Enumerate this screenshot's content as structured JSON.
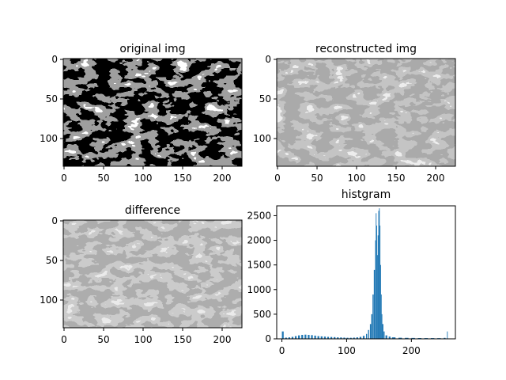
{
  "figure": {
    "panels": [
      {
        "title": "original img",
        "x_ticks": [
          "0",
          "50",
          "100",
          "150",
          "200"
        ],
        "y_ticks": [
          "0",
          "50",
          "100"
        ]
      },
      {
        "title": "reconstructed img",
        "x_ticks": [
          "0",
          "50",
          "100",
          "150",
          "200"
        ],
        "y_ticks": [
          "0",
          "50",
          "100"
        ]
      },
      {
        "title": "difference",
        "x_ticks": [
          "0",
          "50",
          "100",
          "150",
          "200"
        ],
        "y_ticks": [
          "0",
          "50",
          "100"
        ]
      },
      {
        "title": "histgram",
        "x_ticks": [
          "0",
          "100",
          "200"
        ],
        "y_ticks": [
          "0",
          "500",
          "1000",
          "1500",
          "2000",
          "2500"
        ]
      }
    ],
    "colors": {
      "hist_bar": "#1f77b4"
    }
  },
  "chart_data": [
    {
      "type": "image",
      "title": "original img",
      "xlim": [
        0,
        225
      ],
      "ylim": [
        135,
        0
      ],
      "x_ticks": [
        0,
        50,
        100,
        150,
        200
      ],
      "y_ticks": [
        0,
        50,
        100
      ]
    },
    {
      "type": "image",
      "title": "reconstructed img",
      "xlim": [
        0,
        225
      ],
      "ylim": [
        135,
        0
      ],
      "x_ticks": [
        0,
        50,
        100,
        150,
        200
      ],
      "y_ticks": [
        0,
        50,
        100
      ]
    },
    {
      "type": "image",
      "title": "difference",
      "xlim": [
        0,
        225
      ],
      "ylim": [
        135,
        0
      ],
      "x_ticks": [
        0,
        50,
        100,
        150,
        200
      ],
      "y_ticks": [
        0,
        50,
        100
      ]
    },
    {
      "type": "bar",
      "title": "histgram",
      "xlim": [
        -8,
        268
      ],
      "ylim": [
        0,
        2700
      ],
      "x_ticks": [
        0,
        100,
        200
      ],
      "y_ticks": [
        0,
        500,
        1000,
        1500,
        2000,
        2500
      ],
      "bins": [
        [
          0,
          150
        ],
        [
          5,
          25
        ],
        [
          10,
          30
        ],
        [
          15,
          40
        ],
        [
          20,
          55
        ],
        [
          25,
          70
        ],
        [
          30,
          80
        ],
        [
          35,
          85
        ],
        [
          40,
          80
        ],
        [
          45,
          75
        ],
        [
          50,
          65
        ],
        [
          55,
          55
        ],
        [
          60,
          50
        ],
        [
          65,
          45
        ],
        [
          70,
          40
        ],
        [
          75,
          38
        ],
        [
          80,
          35
        ],
        [
          85,
          30
        ],
        [
          90,
          28
        ],
        [
          95,
          25
        ],
        [
          100,
          22
        ],
        [
          105,
          22
        ],
        [
          110,
          25
        ],
        [
          115,
          30
        ],
        [
          120,
          40
        ],
        [
          125,
          60
        ],
        [
          130,
          100
        ],
        [
          133,
          180
        ],
        [
          136,
          300
        ],
        [
          138,
          500
        ],
        [
          140,
          900
        ],
        [
          142,
          1400
        ],
        [
          144,
          2000
        ],
        [
          145,
          2550
        ],
        [
          146,
          2300
        ],
        [
          147,
          1700
        ],
        [
          148,
          2100
        ],
        [
          149,
          2600
        ],
        [
          150,
          2650
        ],
        [
          151,
          2300
        ],
        [
          152,
          1500
        ],
        [
          153,
          900
        ],
        [
          154,
          500
        ],
        [
          155,
          300
        ],
        [
          157,
          150
        ],
        [
          160,
          70
        ],
        [
          165,
          45
        ],
        [
          170,
          30
        ],
        [
          180,
          22
        ],
        [
          190,
          20
        ],
        [
          200,
          18
        ],
        [
          210,
          16
        ],
        [
          220,
          15
        ],
        [
          230,
          15
        ],
        [
          240,
          14
        ],
        [
          250,
          20
        ],
        [
          255,
          150
        ]
      ]
    }
  ]
}
